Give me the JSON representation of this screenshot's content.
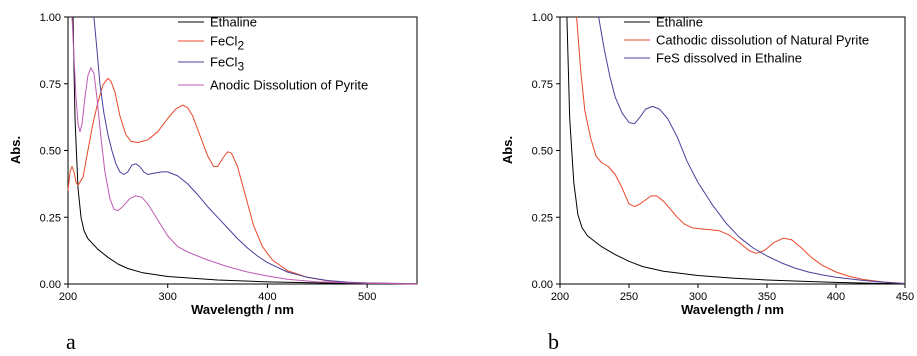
{
  "chart_data": [
    {
      "type": "line",
      "panel_label": "a",
      "xlabel": "Wavelength / nm",
      "ylabel": "Abs.",
      "xlim": [
        200,
        550
      ],
      "ylim": [
        0,
        1.0
      ],
      "x_ticks": [
        200,
        300,
        400,
        500
      ],
      "y_ticks": [
        "0.00",
        "0.25",
        "0.50",
        "0.75",
        "1.00"
      ],
      "legend_position": "top-right",
      "series": [
        {
          "name": "Ethaline",
          "color": "#000000",
          "points": [
            [
              205,
              1.0
            ],
            [
              207,
              0.62
            ],
            [
              210,
              0.36
            ],
            [
              213,
              0.25
            ],
            [
              216,
              0.2
            ],
            [
              220,
              0.17
            ],
            [
              230,
              0.13
            ],
            [
              240,
              0.1
            ],
            [
              250,
              0.075
            ],
            [
              260,
              0.058
            ],
            [
              275,
              0.042
            ],
            [
              300,
              0.028
            ],
            [
              350,
              0.015
            ],
            [
              400,
              0.008
            ],
            [
              450,
              0.004
            ],
            [
              500,
              0.002
            ],
            [
              550,
              0.001
            ]
          ]
        },
        {
          "name": "FeCl",
          "name_subscript": "2",
          "color": "#e8472a",
          "points": [
            [
              200,
              0.35
            ],
            [
              202,
              0.42
            ],
            [
              204,
              0.44
            ],
            [
              206,
              0.42
            ],
            [
              208,
              0.38
            ],
            [
              210,
              0.37
            ],
            [
              215,
              0.4
            ],
            [
              220,
              0.5
            ],
            [
              225,
              0.6
            ],
            [
              230,
              0.68
            ],
            [
              235,
              0.745
            ],
            [
              240,
              0.77
            ],
            [
              243,
              0.76
            ],
            [
              247,
              0.72
            ],
            [
              252,
              0.63
            ],
            [
              258,
              0.56
            ],
            [
              263,
              0.535
            ],
            [
              270,
              0.53
            ],
            [
              280,
              0.54
            ],
            [
              290,
              0.57
            ],
            [
              300,
              0.62
            ],
            [
              308,
              0.655
            ],
            [
              315,
              0.67
            ],
            [
              320,
              0.66
            ],
            [
              325,
              0.63
            ],
            [
              332,
              0.56
            ],
            [
              340,
              0.48
            ],
            [
              346,
              0.44
            ],
            [
              350,
              0.44
            ],
            [
              355,
              0.47
            ],
            [
              360,
              0.495
            ],
            [
              364,
              0.49
            ],
            [
              370,
              0.44
            ],
            [
              378,
              0.33
            ],
            [
              386,
              0.22
            ],
            [
              395,
              0.14
            ],
            [
              405,
              0.09
            ],
            [
              420,
              0.05
            ],
            [
              440,
              0.025
            ],
            [
              460,
              0.012
            ],
            [
              480,
              0.006
            ],
            [
              500,
              0.003
            ],
            [
              550,
              0.001
            ]
          ]
        },
        {
          "name": "FeCl",
          "name_subscript": "3",
          "color": "#4a3f9a",
          "points": [
            [
              226,
              1.0
            ],
            [
              229,
              0.88
            ],
            [
              232,
              0.75
            ],
            [
              236,
              0.64
            ],
            [
              240,
              0.56
            ],
            [
              244,
              0.5
            ],
            [
              248,
              0.45
            ],
            [
              252,
              0.42
            ],
            [
              256,
              0.41
            ],
            [
              260,
              0.42
            ],
            [
              264,
              0.445
            ],
            [
              268,
              0.45
            ],
            [
              272,
              0.44
            ],
            [
              276,
              0.42
            ],
            [
              280,
              0.41
            ],
            [
              286,
              0.415
            ],
            [
              294,
              0.42
            ],
            [
              300,
              0.42
            ],
            [
              310,
              0.405
            ],
            [
              320,
              0.375
            ],
            [
              330,
              0.335
            ],
            [
              340,
              0.29
            ],
            [
              350,
              0.25
            ],
            [
              360,
              0.21
            ],
            [
              370,
              0.17
            ],
            [
              380,
              0.135
            ],
            [
              390,
              0.105
            ],
            [
              400,
              0.08
            ],
            [
              420,
              0.045
            ],
            [
              440,
              0.025
            ],
            [
              460,
              0.013
            ],
            [
              480,
              0.007
            ],
            [
              500,
              0.004
            ],
            [
              550,
              0.001
            ]
          ]
        },
        {
          "name": "Anodic Dissolution of Pyrite",
          "color": "#c05ab4",
          "points": [
            [
              204,
              1.0
            ],
            [
              206,
              0.85
            ],
            [
              208,
              0.7
            ],
            [
              210,
              0.6
            ],
            [
              212,
              0.57
            ],
            [
              214,
              0.6
            ],
            [
              217,
              0.7
            ],
            [
              220,
              0.78
            ],
            [
              223,
              0.81
            ],
            [
              226,
              0.79
            ],
            [
              229,
              0.7
            ],
            [
              233,
              0.55
            ],
            [
              237,
              0.42
            ],
            [
              242,
              0.32
            ],
            [
              246,
              0.28
            ],
            [
              250,
              0.275
            ],
            [
              255,
              0.29
            ],
            [
              262,
              0.32
            ],
            [
              268,
              0.33
            ],
            [
              274,
              0.325
            ],
            [
              280,
              0.3
            ],
            [
              290,
              0.24
            ],
            [
              300,
              0.18
            ],
            [
              310,
              0.14
            ],
            [
              320,
              0.12
            ],
            [
              340,
              0.09
            ],
            [
              360,
              0.065
            ],
            [
              380,
              0.045
            ],
            [
              400,
              0.03
            ],
            [
              420,
              0.018
            ],
            [
              450,
              0.008
            ],
            [
              500,
              0.003
            ],
            [
              550,
              0.001
            ]
          ]
        }
      ]
    },
    {
      "type": "line",
      "panel_label": "b",
      "xlabel": "Wavelength / nm",
      "ylabel": "Abs.",
      "xlim": [
        200,
        450
      ],
      "ylim": [
        0,
        1.0
      ],
      "x_ticks": [
        200,
        250,
        300,
        350,
        400,
        450
      ],
      "y_ticks": [
        "0.00",
        "0.25",
        "0.50",
        "0.75",
        "1.00"
      ],
      "legend_position": "top-right",
      "series": [
        {
          "name": "Ethaline",
          "color": "#000000",
          "points": [
            [
              205,
              1.0
            ],
            [
              207,
              0.62
            ],
            [
              210,
              0.38
            ],
            [
              213,
              0.26
            ],
            [
              216,
              0.21
            ],
            [
              220,
              0.18
            ],
            [
              230,
              0.14
            ],
            [
              240,
              0.11
            ],
            [
              250,
              0.085
            ],
            [
              260,
              0.065
            ],
            [
              275,
              0.048
            ],
            [
              300,
              0.032
            ],
            [
              325,
              0.022
            ],
            [
              350,
              0.015
            ],
            [
              375,
              0.01
            ],
            [
              400,
              0.006
            ],
            [
              425,
              0.003
            ],
            [
              450,
              0.001
            ]
          ]
        },
        {
          "name": "Cathodic dissolution of Natural Pyrite",
          "color": "#e8472a",
          "points": [
            [
              212,
              1.0
            ],
            [
              215,
              0.8
            ],
            [
              218,
              0.65
            ],
            [
              222,
              0.55
            ],
            [
              226,
              0.48
            ],
            [
              230,
              0.455
            ],
            [
              235,
              0.44
            ],
            [
              240,
              0.41
            ],
            [
              245,
              0.36
            ],
            [
              250,
              0.3
            ],
            [
              254,
              0.29
            ],
            [
              258,
              0.3
            ],
            [
              262,
              0.315
            ],
            [
              266,
              0.33
            ],
            [
              270,
              0.33
            ],
            [
              275,
              0.31
            ],
            [
              280,
              0.28
            ],
            [
              285,
              0.25
            ],
            [
              290,
              0.225
            ],
            [
              296,
              0.21
            ],
            [
              305,
              0.205
            ],
            [
              315,
              0.2
            ],
            [
              322,
              0.185
            ],
            [
              330,
              0.155
            ],
            [
              337,
              0.125
            ],
            [
              342,
              0.115
            ],
            [
              348,
              0.125
            ],
            [
              355,
              0.155
            ],
            [
              362,
              0.172
            ],
            [
              368,
              0.165
            ],
            [
              375,
              0.135
            ],
            [
              382,
              0.1
            ],
            [
              390,
              0.07
            ],
            [
              400,
              0.045
            ],
            [
              410,
              0.028
            ],
            [
              420,
              0.017
            ],
            [
              435,
              0.007
            ],
            [
              450,
              0.002
            ]
          ]
        },
        {
          "name": "FeS dissolved in Ethaline",
          "color": "#4a3f9a",
          "points": [
            [
              228,
              1.0
            ],
            [
              232,
              0.88
            ],
            [
              236,
              0.78
            ],
            [
              240,
              0.7
            ],
            [
              245,
              0.64
            ],
            [
              250,
              0.605
            ],
            [
              254,
              0.6
            ],
            [
              258,
              0.625
            ],
            [
              262,
              0.655
            ],
            [
              267,
              0.665
            ],
            [
              272,
              0.655
            ],
            [
              278,
              0.62
            ],
            [
              285,
              0.55
            ],
            [
              292,
              0.46
            ],
            [
              300,
              0.38
            ],
            [
              310,
              0.3
            ],
            [
              320,
              0.23
            ],
            [
              330,
              0.175
            ],
            [
              340,
              0.135
            ],
            [
              350,
              0.105
            ],
            [
              360,
              0.08
            ],
            [
              370,
              0.06
            ],
            [
              380,
              0.045
            ],
            [
              390,
              0.034
            ],
            [
              400,
              0.025
            ],
            [
              420,
              0.013
            ],
            [
              440,
              0.005
            ],
            [
              450,
              0.002
            ]
          ]
        }
      ]
    }
  ]
}
